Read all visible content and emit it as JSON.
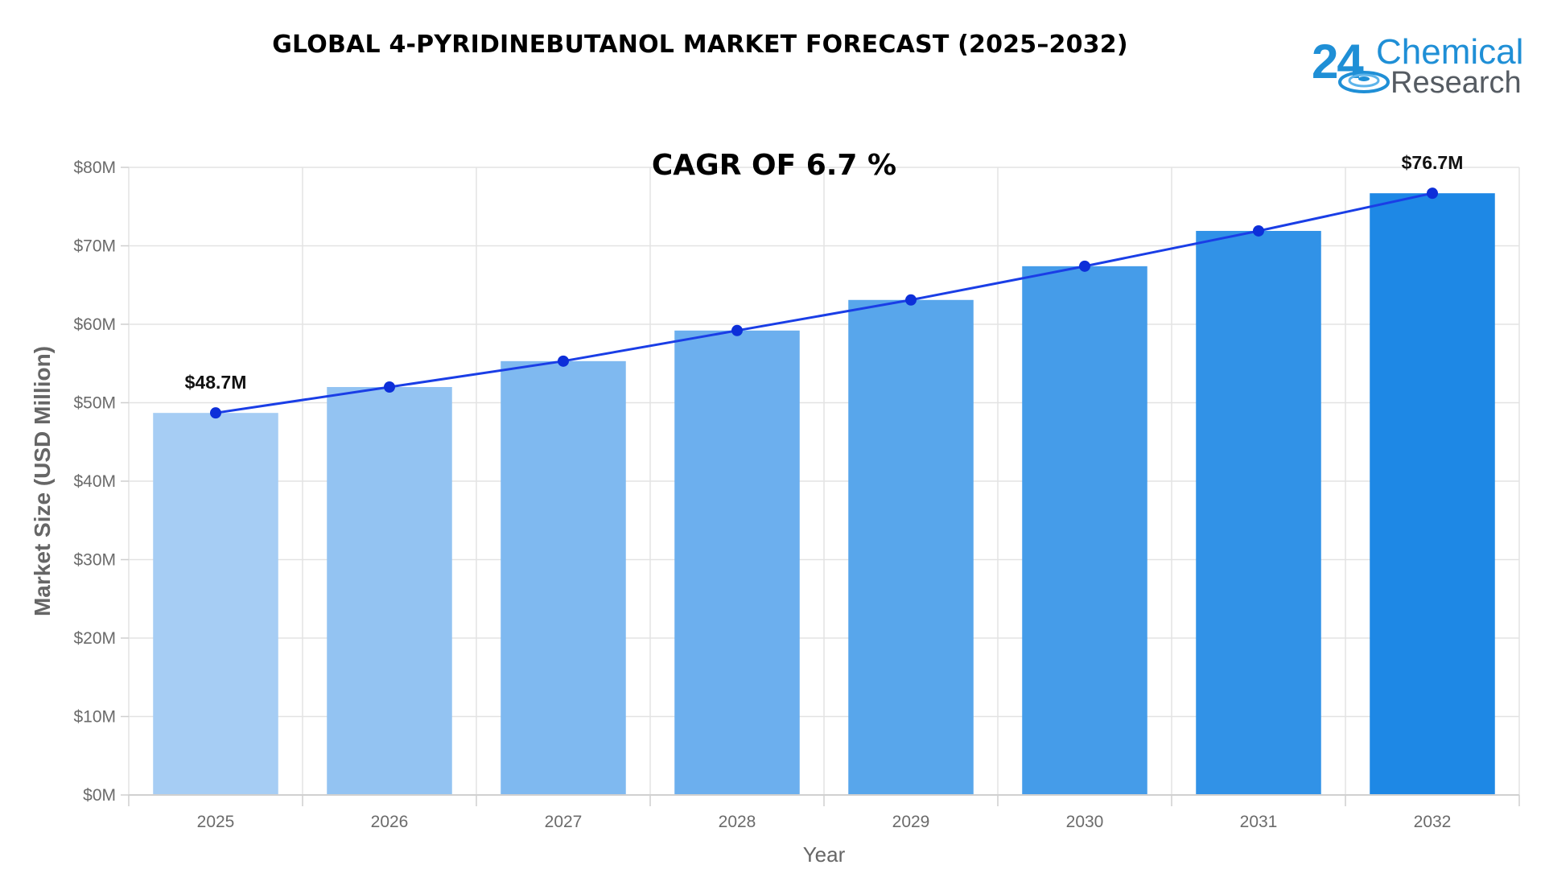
{
  "title": "GLOBAL 4-PYRIDINEBUTANOL MARKET FORECAST (2025–2032)",
  "logo": {
    "number": "24",
    "word1": "Chemical",
    "word2": "Research"
  },
  "colors": {
    "line": "#1a3ee6",
    "marker": "#0d2fd9",
    "grid": "#e3e3e3",
    "bar_light": "#a6cdf4",
    "bar_dark": "#1e88e5",
    "logo_blue": "#1f8fd6",
    "logo_gray": "#555b62"
  },
  "chart_data": {
    "type": "bar",
    "annotation": "CAGR OF 6.7 %",
    "xlabel": "Year",
    "ylabel": "Market Size (USD Million)",
    "categories": [
      "2025",
      "2026",
      "2027",
      "2028",
      "2029",
      "2030",
      "2031",
      "2032"
    ],
    "values": [
      48.7,
      52.0,
      55.3,
      59.2,
      63.1,
      67.4,
      71.9,
      76.7
    ],
    "ylim": [
      0,
      80
    ],
    "yticks": [
      0,
      10,
      20,
      30,
      40,
      50,
      60,
      70,
      80
    ],
    "ytick_labels": [
      "$0M",
      "$10M",
      "$20M",
      "$30M",
      "$40M",
      "$50M",
      "$60M",
      "$70M",
      "$80M"
    ],
    "overlay_line": true,
    "data_labels": [
      {
        "category": "2025",
        "text": "$48.7M"
      },
      {
        "category": "2032",
        "text": "$76.7M"
      }
    ],
    "grid": true
  }
}
